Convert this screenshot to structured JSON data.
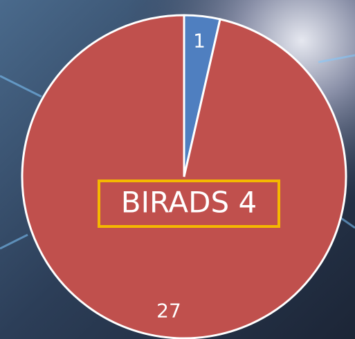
{
  "chart_data": {
    "type": "pie",
    "title": "BIRADS 4",
    "values": [
      1,
      27
    ],
    "colors": [
      "#4f7fc0",
      "#c0504d"
    ]
  }
}
